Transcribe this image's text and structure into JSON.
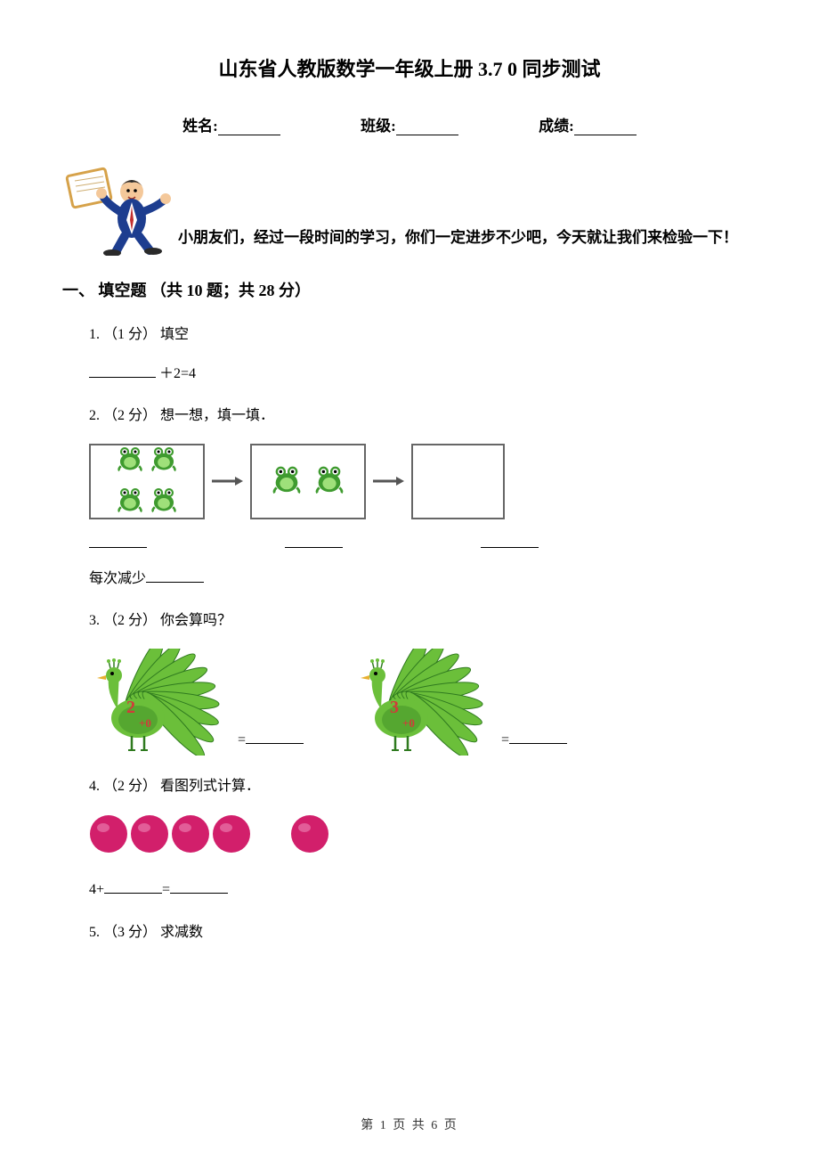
{
  "title": "山东省人教版数学一年级上册 3.7 0 同步测试",
  "header": {
    "name_label": "姓名:",
    "class_label": "班级:",
    "score_label": "成绩:"
  },
  "intro": "小朋友们，经过一段时间的学习，你们一定进步不少吧，今天就让我们来检验一下！",
  "section": {
    "label": "一、 填空题 （共 10 题；共 28 分）"
  },
  "questions": {
    "q1": {
      "head": "1.  （1 分）  填空",
      "expr": " ＋2=4"
    },
    "q2": {
      "head": "2.  （2 分）  想一想，填一填．",
      "tail": "每次减少"
    },
    "q3": {
      "head": "3.  （2 分）  你会算吗？",
      "eq": "="
    },
    "q4": {
      "head": "4.  （2 分）  看图列式计算．",
      "expr_left": "4+",
      "expr_mid": "="
    },
    "q5": {
      "head": "5.  （3 分）  求减数"
    }
  },
  "footer": "第 1 页 共 6 页",
  "colors": {
    "frog_body": "#3f9b2f",
    "frog_light": "#9fe07a",
    "arrow_fill": "#555555",
    "peacock_body": "#6bbf3a",
    "peacock_dark": "#2f7a1f",
    "peacock_num": "#d23a3a",
    "peacock_beak": "#e8b030",
    "dot_fill": "#d21f6b",
    "dot_shine": "#e878ab",
    "teacher_suit": "#1d3d8f",
    "teacher_skin": "#f4c89a",
    "teacher_board": "#ffffff",
    "teacher_border": "#d6a24a"
  },
  "q2_boxes": {
    "frogs_box1": 4,
    "frogs_box2": 2
  },
  "q3_peacocks": {
    "p1_num": "2",
    "p2_num": "3",
    "eq_text": "+0"
  },
  "q4_dots": {
    "group1": 4,
    "group2": 1
  }
}
